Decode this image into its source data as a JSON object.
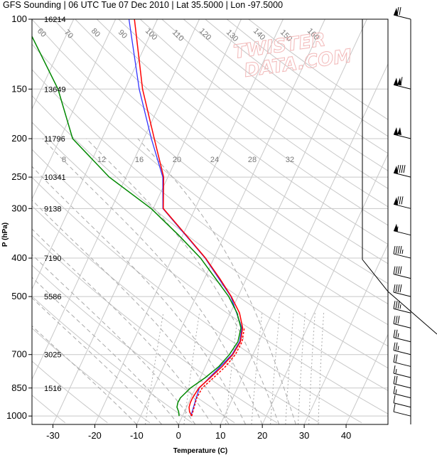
{
  "title": "GFS Sounding | 06 UTC Tue 07 Dec 2010 | Lat 35.5000 | Lon -97.5000",
  "watermark": [
    "TWISTER",
    "DATA.COM"
  ],
  "colors": {
    "temperature": "#ff0000",
    "virtual_temperature": "#3333ff",
    "dewpoint": "#008800",
    "parcel": "#ff0000",
    "isotherm": "#c8c8c8",
    "dry_adiabat": "#c8c8c8",
    "moist_adiabat": "#aaaaaa",
    "mixing_ratio": "#aaaaaa",
    "wind_barb": "#000000"
  },
  "chart_data": {
    "type": "line",
    "subtype": "skew-t log-p",
    "xlabel": "Temperature (C)",
    "ylabel": "P (hPa)",
    "xlim": [
      -35,
      50
    ],
    "ylim": [
      1050,
      100
    ],
    "y_scale": "log",
    "x_ticks": [
      -30,
      -20,
      -10,
      0,
      10,
      20,
      30,
      40
    ],
    "pressure_levels": [
      100,
      150,
      200,
      250,
      300,
      400,
      500,
      700,
      850,
      1000
    ],
    "heights_m": [
      "16214",
      "13649",
      "11796",
      "10341",
      "9138",
      "7190",
      "5586",
      "3025",
      "1516",
      ""
    ],
    "mixing_ratio_labels": [
      "8",
      "12",
      "16",
      "20",
      "24",
      "28",
      "32"
    ],
    "isotherm_labels": [
      "60",
      "70",
      "80",
      "90",
      "100",
      "110",
      "120",
      "130",
      "140",
      "150",
      "160"
    ],
    "dry_adiabat_labels": [
      "40",
      "30",
      "20",
      "10",
      "0",
      "10",
      "20",
      "30"
    ],
    "moist_adiabat_labels": [
      "1",
      "2",
      "3",
      "5",
      "8",
      "12",
      "16",
      "20"
    ],
    "series": [
      {
        "name": "Temperature",
        "key": "temp",
        "points": [
          [
            1000,
            2.2
          ],
          [
            975,
            1.2
          ],
          [
            950,
            0.6
          ],
          [
            925,
            0.4
          ],
          [
            900,
            0.4
          ],
          [
            850,
            0.8
          ],
          [
            800,
            2.4
          ],
          [
            750,
            4.0
          ],
          [
            700,
            5.2
          ],
          [
            650,
            5.6
          ],
          [
            600,
            4.6
          ],
          [
            550,
            2.2
          ],
          [
            500,
            -1.6
          ],
          [
            450,
            -6.4
          ],
          [
            400,
            -12.0
          ],
          [
            350,
            -19.2
          ],
          [
            300,
            -27.6
          ],
          [
            250,
            -31.0
          ],
          [
            200,
            -37.5
          ],
          [
            150,
            -45.8
          ],
          [
            100,
            -55.5
          ]
        ]
      },
      {
        "name": "Virtual temperature",
        "key": "tv",
        "points": [
          [
            1000,
            2.0
          ],
          [
            850,
            0.9
          ],
          [
            700,
            5.0
          ],
          [
            650,
            5.4
          ],
          [
            600,
            4.4
          ],
          [
            500,
            -1.7
          ],
          [
            400,
            -12.1
          ],
          [
            300,
            -27.7
          ],
          [
            250,
            -31.2
          ],
          [
            200,
            -38.2
          ],
          [
            150,
            -46.6
          ],
          [
            100,
            -56.8
          ]
        ]
      },
      {
        "name": "Dewpoint",
        "key": "dew",
        "points": [
          [
            1000,
            -0.8
          ],
          [
            975,
            -1.4
          ],
          [
            950,
            -2.3
          ],
          [
            925,
            -2.6
          ],
          [
            900,
            -2.5
          ],
          [
            850,
            -1.2
          ],
          [
            800,
            1.2
          ],
          [
            750,
            3.2
          ],
          [
            700,
            4.4
          ],
          [
            650,
            5.0
          ],
          [
            600,
            4.2
          ],
          [
            550,
            1.6
          ],
          [
            500,
            -2.2
          ],
          [
            450,
            -7.4
          ],
          [
            400,
            -13.2
          ],
          [
            350,
            -21.0
          ],
          [
            300,
            -30.5
          ],
          [
            250,
            -44.0
          ],
          [
            200,
            -57.0
          ],
          [
            150,
            -66.0
          ],
          [
            100,
            -82.0
          ]
        ]
      },
      {
        "name": "Parcel",
        "key": "parcel",
        "points": [
          [
            1000,
            2.2
          ],
          [
            950,
            1.8
          ],
          [
            900,
            1.4
          ],
          [
            850,
            1.6
          ],
          [
            800,
            3.2
          ],
          [
            750,
            4.8
          ],
          [
            700,
            5.8
          ],
          [
            650,
            6.0
          ],
          [
            600,
            5.0
          ]
        ]
      }
    ],
    "wind_barbs": [
      {
        "p": 100,
        "speed_kt": 70
      },
      {
        "p": 150,
        "speed_kt": 110
      },
      {
        "p": 200,
        "speed_kt": 100
      },
      {
        "p": 250,
        "speed_kt": 90
      },
      {
        "p": 300,
        "speed_kt": 80
      },
      {
        "p": 350,
        "speed_kt": 55
      },
      {
        "p": 400,
        "speed_kt": 45
      },
      {
        "p": 450,
        "speed_kt": 40
      },
      {
        "p": 500,
        "speed_kt": 40
      },
      {
        "p": 550,
        "speed_kt": 35
      },
      {
        "p": 600,
        "speed_kt": 30
      },
      {
        "p": 650,
        "speed_kt": 25
      },
      {
        "p": 700,
        "speed_kt": 25
      },
      {
        "p": 750,
        "speed_kt": 20
      },
      {
        "p": 800,
        "speed_kt": 15
      },
      {
        "p": 850,
        "speed_kt": 20
      },
      {
        "p": 900,
        "speed_kt": 15
      },
      {
        "p": 950,
        "speed_kt": 10
      },
      {
        "p": 1000,
        "speed_kt": 10
      }
    ]
  }
}
